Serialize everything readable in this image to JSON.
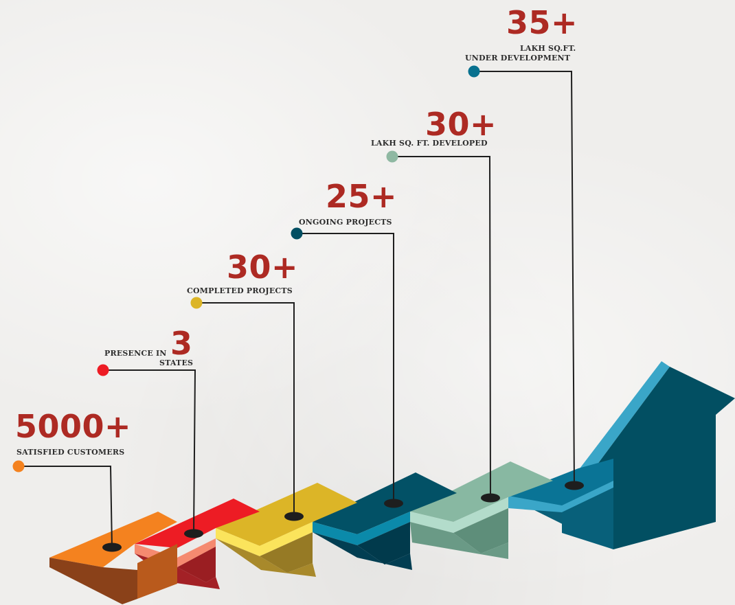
{
  "stats": [
    {
      "value": "5000+",
      "label": "SATISFIED CUSTOMERS",
      "color": "#f4821f"
    },
    {
      "value": "3",
      "label_prefix": "PRESENCE IN",
      "label": "STATES",
      "color": "#ed1c24"
    },
    {
      "value": "30+",
      "label": "COMPLETED PROJECTS",
      "color": "#dcb527"
    },
    {
      "value": "25+",
      "label": "ONGOING PROJECTS",
      "color": "#024f62"
    },
    {
      "value": "30+",
      "label": "LAKH SQ. FT. DEVELOPED",
      "color": "#8fb8a2"
    },
    {
      "value": "35+",
      "label_line1": "LAKH SQ.FT.",
      "label_line2": "UNDER DEVELOPMENT",
      "color": "#08718f"
    }
  ],
  "colors": {
    "value_text": "#ad2a23",
    "connector_line": "#1e1e1e",
    "arrow_dark": "#024f62",
    "arrow_light": "#3aa6c8"
  }
}
